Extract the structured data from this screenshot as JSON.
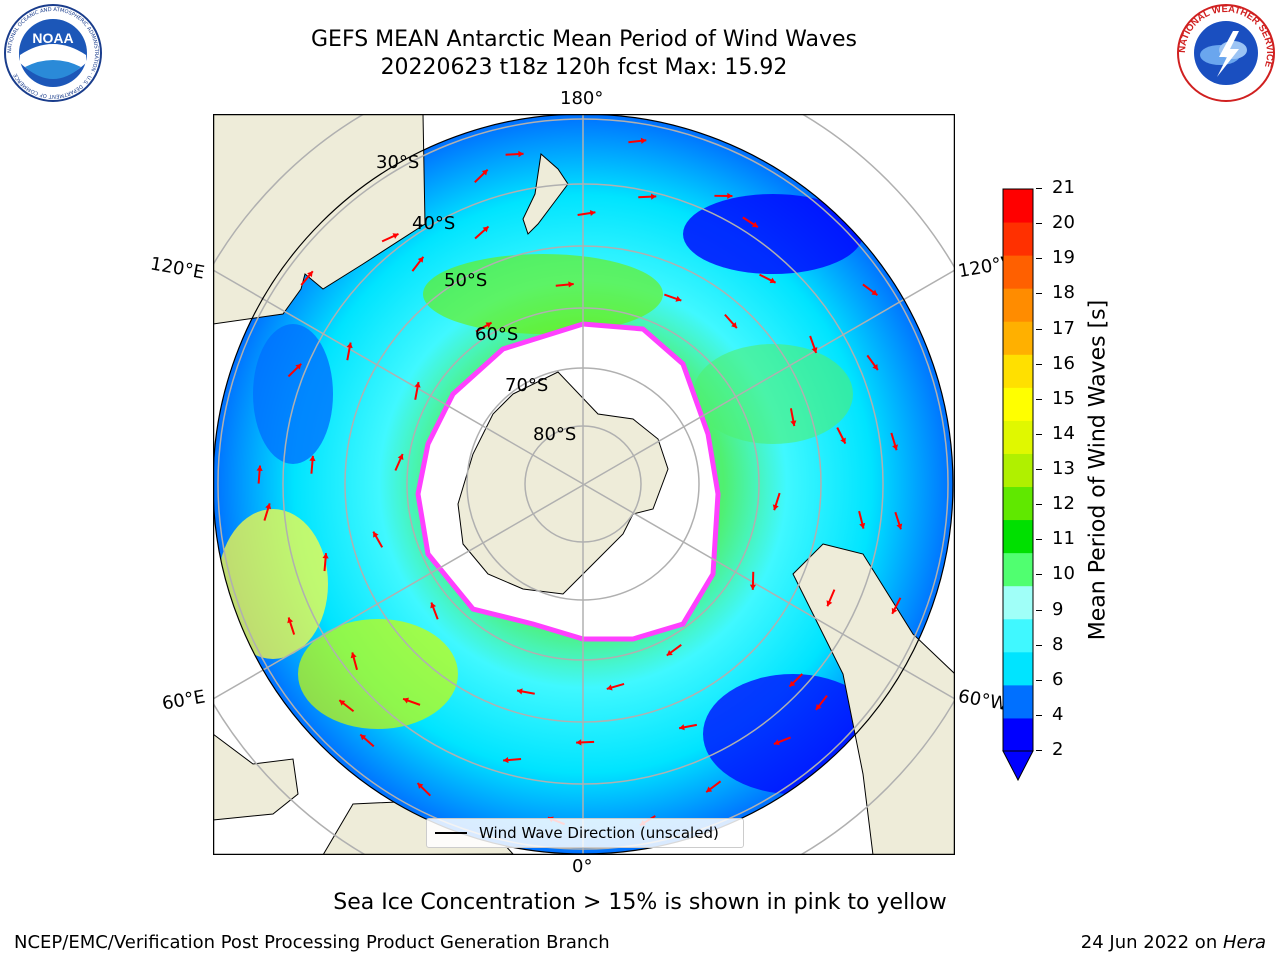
{
  "header": {
    "title_line1": "GEFS MEAN Antarctic Mean Period of Wind Waves",
    "title_line2": "20220623 t18z 120h fcst   Max: 15.92"
  },
  "logos": {
    "noaa": "NOAA",
    "noaa_ring": "NATIONAL OCEANIC AND ATMOSPHERIC ADMINISTRATION · U.S. DEPARTMENT OF COMMERCE",
    "nws_ring": "NATIONAL WEATHER SERVICE"
  },
  "map": {
    "longitude_labels": {
      "top": "180°",
      "bottom": "0°",
      "left_upper": "120°E",
      "left_lower": "60°E",
      "right_upper": "120°W",
      "right_lower": "60°W"
    },
    "latitude_labels": [
      "30°S",
      "40°S",
      "50°S",
      "60°S",
      "70°S",
      "80°S"
    ],
    "legend_label": "Wind Wave Direction (unscaled)",
    "colors": {
      "land": "#eeecd9",
      "ice": "#ffffff",
      "arrow": "#ff0000",
      "grid": "#b0b0b0"
    }
  },
  "colorbar": {
    "title": "Mean Period of Wind Waves [s]",
    "ticks": [
      "21",
      "20",
      "19",
      "18",
      "17",
      "16",
      "15",
      "14",
      "13",
      "12",
      "11",
      "10",
      "9",
      "8",
      "6",
      "4",
      "2"
    ],
    "colors": [
      "#0000ff",
      "#0070ff",
      "#00e4ff",
      "#40f8ff",
      "#a0fff8",
      "#50ff70",
      "#00e000",
      "#60e800",
      "#b0f000",
      "#e0f800",
      "#ffff00",
      "#ffe000",
      "#ffb000",
      "#ff8c00",
      "#ff6000",
      "#ff3000",
      "#ff0000"
    ]
  },
  "caption": "Sea Ice Concentration > 15% is shown in pink to yellow",
  "footer": {
    "left": "NCEP/EMC/Verification Post Processing Product Generation Branch",
    "right_date": "24 Jun 2022 on ",
    "right_host": "Hera"
  }
}
